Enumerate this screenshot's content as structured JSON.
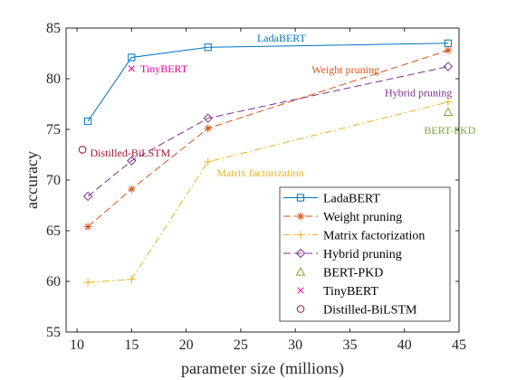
{
  "chart_data": {
    "type": "line",
    "xlabel": "parameter size (millions)",
    "ylabel": "accuracy",
    "xlim": [
      9,
      45
    ],
    "ylim": [
      55,
      85
    ],
    "xticks": [
      10,
      15,
      20,
      25,
      30,
      35,
      40,
      45
    ],
    "yticks": [
      55,
      60,
      65,
      70,
      75,
      80,
      85
    ],
    "grid": false,
    "legend_position": "bottom-right",
    "series": [
      {
        "name": "LadaBERT",
        "color": "#0072bd",
        "line": "solid",
        "marker": "square",
        "x": [
          11,
          15,
          22,
          44
        ],
        "y": [
          75.8,
          82.1,
          83.1,
          83.5
        ]
      },
      {
        "name": "Weight pruning",
        "color": "#d95319",
        "line": "dashed",
        "marker": "asterisk",
        "x": [
          11,
          15,
          22,
          44
        ],
        "y": [
          65.4,
          69.1,
          75.1,
          82.8
        ]
      },
      {
        "name": "Matrix factorization",
        "color": "#edb120",
        "line": "dashdot",
        "marker": "plus",
        "x": [
          11,
          15,
          22,
          44
        ],
        "y": [
          59.9,
          60.2,
          71.8,
          77.7
        ]
      },
      {
        "name": "Hybrid pruning",
        "color": "#7e2f8e",
        "line": "dashed",
        "marker": "diamond",
        "x": [
          11,
          15,
          22,
          44
        ],
        "y": [
          68.4,
          71.9,
          76.1,
          81.2
        ]
      },
      {
        "name": "BERT-PKD",
        "color": "#77ac30",
        "line": "none",
        "marker": "triangle",
        "x": [
          44
        ],
        "y": [
          76.7
        ]
      },
      {
        "name": "TinyBERT",
        "color": "#e6009e",
        "line": "none",
        "marker": "x",
        "x": [
          15
        ],
        "y": [
          81.0
        ]
      },
      {
        "name": "Distilled-BiLSTM",
        "color": "#a2142f",
        "line": "none",
        "marker": "circle",
        "x": [
          10.5
        ],
        "y": [
          73.0
        ]
      }
    ],
    "annotations": [
      {
        "text": "LadaBERT",
        "color": "#0072bd",
        "x": 26.5,
        "y": 84.0
      },
      {
        "text": "TinyBERT",
        "color": "#e6009e",
        "x": 15.8,
        "y": 81.0
      },
      {
        "text": "Weight pruning",
        "color": "#d95319",
        "x": 31.5,
        "y": 80.9
      },
      {
        "text": "Hybrid pruning",
        "color": "#7e2f8e",
        "x": 38.2,
        "y": 78.6
      },
      {
        "text": "BERT-PKD",
        "color": "#77ac30",
        "x": 41.8,
        "y": 74.9
      },
      {
        "text": "Distilled-BiLSTM",
        "color": "#a2142f",
        "x": 11.2,
        "y": 72.7
      },
      {
        "text": "Matrix factorization",
        "color": "#edb120",
        "x": 22.8,
        "y": 70.7
      }
    ]
  }
}
